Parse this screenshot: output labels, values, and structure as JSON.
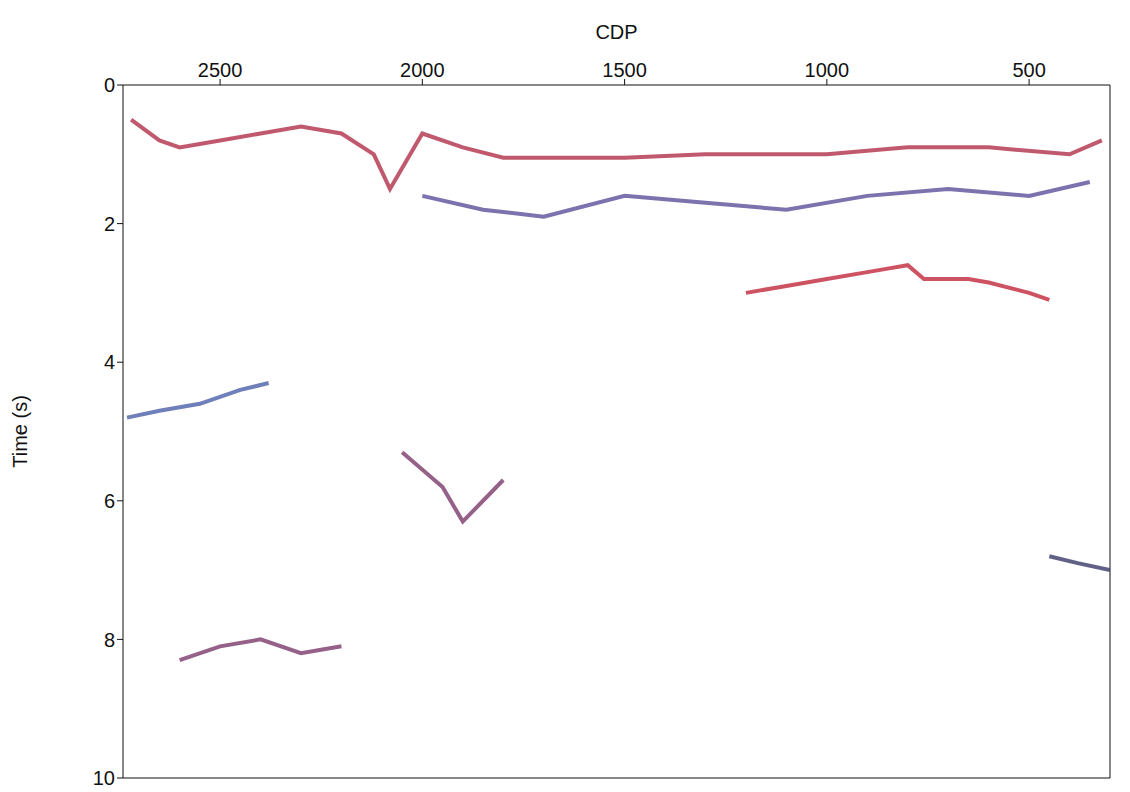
{
  "chart_data": {
    "type": "line",
    "x_label": "CDP",
    "y_label": "Time (s)",
    "xlim": [
      2740,
      300
    ],
    "xticks": [
      2500,
      2000,
      1500,
      1000,
      500
    ],
    "ylim": [
      0,
      10
    ],
    "yticks": [
      0,
      2,
      4,
      6,
      8,
      10
    ],
    "grid": false,
    "series": [
      {
        "color": "#b0304a",
        "x": [
          2720,
          2650,
          2600,
          2500,
          2400,
          2300,
          2200,
          2120,
          2080,
          2000,
          1900,
          1800,
          1700,
          1500,
          1300,
          1000,
          800,
          600,
          400,
          320
        ],
        "values": [
          0.5,
          0.8,
          0.9,
          0.8,
          0.7,
          0.6,
          0.7,
          1.0,
          1.5,
          0.7,
          0.9,
          1.05,
          1.05,
          1.05,
          1.0,
          1.0,
          0.9,
          0.9,
          1.0,
          0.8
        ]
      },
      {
        "color": "#5a4f9a",
        "x": [
          2000,
          1850,
          1700,
          1500,
          1300,
          1100,
          900,
          700,
          500,
          350
        ],
        "values": [
          1.6,
          1.8,
          1.9,
          1.6,
          1.7,
          1.8,
          1.6,
          1.5,
          1.6,
          1.4
        ]
      },
      {
        "color": "#c0283c",
        "x": [
          1200,
          1100,
          1000,
          900,
          850,
          800,
          760,
          700,
          650,
          600,
          500,
          450
        ],
        "values": [
          3.0,
          2.9,
          2.8,
          2.7,
          2.65,
          2.6,
          2.8,
          2.8,
          2.8,
          2.85,
          3.0,
          3.1
        ]
      },
      {
        "color": "#4a5fa8",
        "x": [
          2730,
          2650,
          2550,
          2450,
          2380
        ],
        "values": [
          4.8,
          4.7,
          4.6,
          4.4,
          4.3
        ]
      },
      {
        "color": "#7a3a6a",
        "x": [
          2050,
          1950,
          1900,
          1800
        ],
        "values": [
          5.3,
          5.8,
          6.3,
          5.7
        ]
      },
      {
        "color": "#7a3a6a",
        "x": [
          2600,
          2500,
          2400,
          2300,
          2200
        ],
        "values": [
          8.3,
          8.1,
          8.0,
          8.2,
          8.1
        ]
      },
      {
        "color": "#3a3a6a",
        "x": [
          450,
          380,
          300
        ],
        "values": [
          6.8,
          6.9,
          7.0
        ]
      }
    ]
  }
}
